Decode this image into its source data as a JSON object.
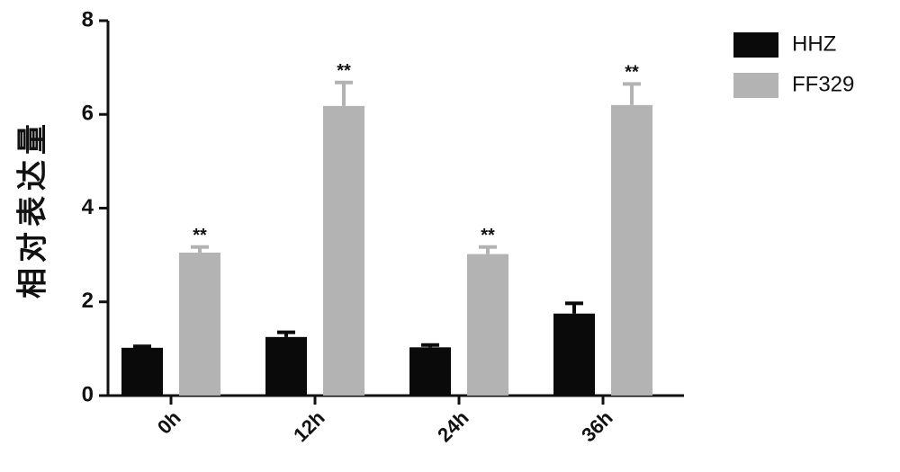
{
  "chart_data": {
    "type": "bar",
    "ylabel": "相对表达量",
    "categories": [
      "0h",
      "12h",
      "24h",
      "36h"
    ],
    "series": [
      {
        "name": "HHZ",
        "color": "#0a0a0a",
        "values": [
          1.02,
          1.25,
          1.03,
          1.75
        ],
        "errors": [
          0.03,
          0.1,
          0.05,
          0.22
        ]
      },
      {
        "name": "FF329",
        "color": "#b3b3b3",
        "values": [
          3.05,
          6.18,
          3.02,
          6.2
        ],
        "errors": [
          0.12,
          0.5,
          0.15,
          0.45
        ],
        "annotations": [
          "**",
          "**",
          "**",
          "**"
        ]
      }
    ],
    "ylim": [
      0,
      8
    ],
    "yticks": [
      0,
      2,
      4,
      6,
      8
    ],
    "legend": "right"
  }
}
